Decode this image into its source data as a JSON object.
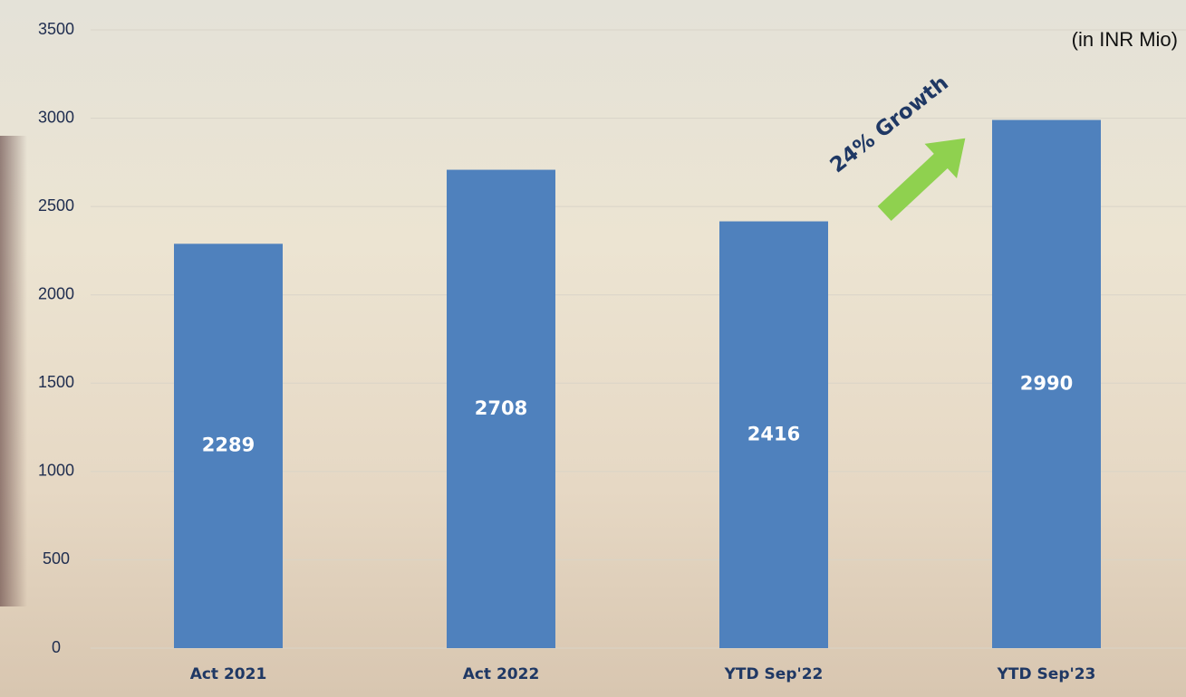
{
  "chart_data": {
    "type": "bar",
    "categories": [
      "Act 2021",
      "Act 2022",
      "YTD Sep'22",
      "YTD Sep'23"
    ],
    "values": [
      2289,
      2708,
      2416,
      2990
    ],
    "color": "#4f81bd",
    "ylim": [
      0,
      3500
    ],
    "yticks": [
      0,
      500,
      1000,
      1500,
      2000,
      2500,
      3000,
      3500
    ],
    "grid": true,
    "unit_note": "(in INR Mio)",
    "annotation": "24% Growth"
  }
}
